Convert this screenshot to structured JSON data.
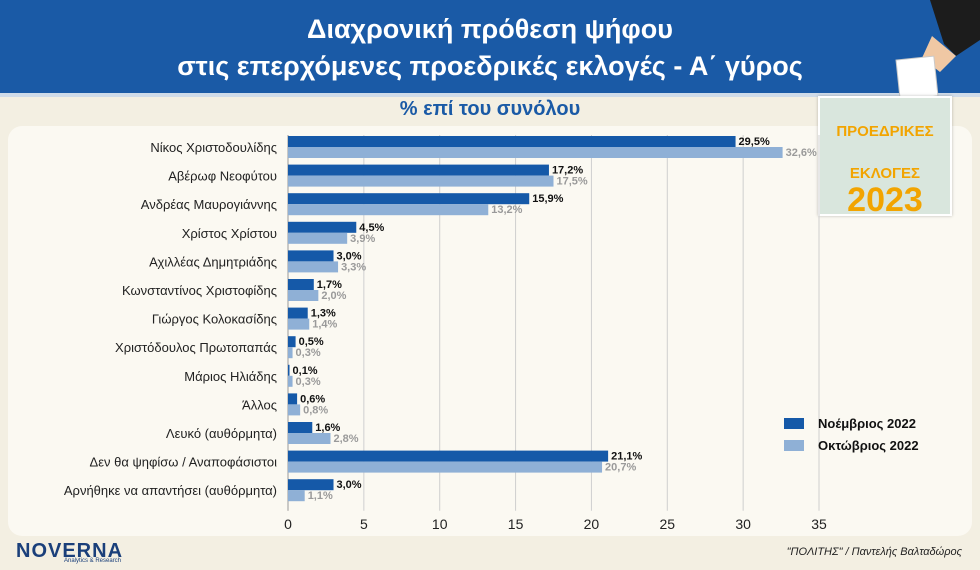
{
  "header": {
    "title_line1": "Διαχρονική πρόθεση ψήφου",
    "title_line2": "στις επερχόμενες προεδρικές εκλογές - Α΄ γύρος"
  },
  "subtitle": "% επί του συνόλου",
  "badge": {
    "line1": "ΠΡΟΕΔΡΙΚΕΣ",
    "line2": "ΕΚΛΟΓΕΣ",
    "year": "2023"
  },
  "logo": {
    "name": "NOVERNA",
    "tagline": "Analytics & Research"
  },
  "credit": "\"ΠΟΛΙΤΗΣ\" / Παντελής Βαλταδώρος",
  "colors": {
    "november": "#1559a8",
    "october": "#8fb0d6",
    "header": "#1a5aa6"
  },
  "chart_data": {
    "type": "bar",
    "orientation": "horizontal",
    "categories": [
      "Νίκος Χριστοδουλίδης",
      "Αβέρωφ Νεοφύτου",
      "Ανδρέας Μαυρογιάννης",
      "Χρίστος Χρίστου",
      "Αχιλλέας Δημητριάδης",
      "Κωνσταντίνος Χριστοφίδης",
      "Γιώργος Κολοκασίδης",
      "Χριστόδουλος Πρωτοπαπάς",
      "Μάριος Ηλιάδης",
      "Άλλος",
      "Λευκό (αυθόρμητα)",
      "Δεν θα ψηφίσω / Αναποφάσιστοι",
      "Αρνήθηκε να απαντήσει (αυθόρμητα)"
    ],
    "series": [
      {
        "name": "Νοέμβριος 2022",
        "values": [
          29.5,
          17.2,
          15.9,
          4.5,
          3.0,
          1.7,
          1.3,
          0.5,
          0.1,
          0.6,
          1.6,
          21.1,
          3.0
        ],
        "labels": [
          "29,5%",
          "17,2%",
          "15,9%",
          "4,5%",
          "3,0%",
          "1,7%",
          "1,3%",
          "0,5%",
          "0,1%",
          "0,6%",
          "1,6%",
          "21,1%",
          "3,0%"
        ]
      },
      {
        "name": "Οκτώβριος 2022",
        "values": [
          32.6,
          17.5,
          13.2,
          3.9,
          3.3,
          2.0,
          1.4,
          0.3,
          0.3,
          0.8,
          2.8,
          20.7,
          1.1
        ],
        "labels": [
          "32,6%",
          "17,5%",
          "13,2%",
          "3,9%",
          "3,3%",
          "2,0%",
          "1,4%",
          "0,3%",
          "0,3%",
          "0,8%",
          "2,8%",
          "20,7%",
          "1,1%"
        ]
      }
    ],
    "xlim": [
      0,
      35
    ],
    "xticks": [
      "0",
      "5",
      "10",
      "15",
      "20",
      "25",
      "30",
      "35"
    ],
    "xtick_values": [
      0,
      5,
      10,
      15,
      20,
      25,
      30,
      35
    ],
    "grid": true,
    "legend_position": "bottom-right"
  }
}
